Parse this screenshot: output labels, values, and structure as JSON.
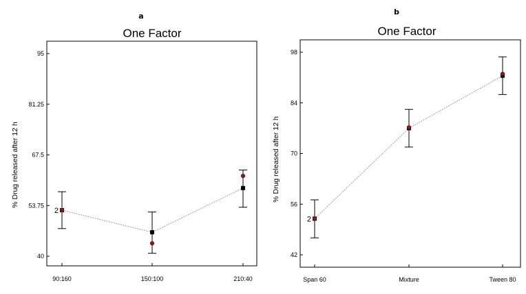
{
  "chart_data": [
    {
      "panel_label": "a",
      "type": "line",
      "title": "One Factor",
      "ylabel": "% Drug released after 12 h",
      "xlabel": "",
      "categories": [
        "90:160",
        "150:100",
        "210:40"
      ],
      "yticks": [
        "95",
        "81.25",
        "67.5",
        "53.75",
        "40"
      ],
      "ylim": [
        40,
        95
      ],
      "predicted": [
        52.5,
        46.5,
        58.5
      ],
      "ci_low": [
        47.5,
        40.8,
        53.3
      ],
      "ci_high": [
        57.5,
        52.0,
        63.4
      ],
      "observed": [
        52.5,
        43.5,
        61.8
      ],
      "point_count_label": "2",
      "grid": false,
      "colors": {
        "predicted": "#000000",
        "observed": "#8b1a1a",
        "line": "#9a9a9a"
      }
    },
    {
      "panel_label": "b",
      "type": "line",
      "title": "One Factor",
      "ylabel": "% Drug released after 12 h",
      "xlabel": "",
      "categories": [
        "Span 60",
        "Mixture",
        "Tween 80"
      ],
      "yticks": [
        "98",
        "84",
        "70",
        "56",
        "42"
      ],
      "ylim": [
        42,
        98
      ],
      "predicted": [
        52.0,
        77.0,
        91.5
      ],
      "ci_low": [
        46.7,
        71.8,
        86.3
      ],
      "ci_high": [
        57.2,
        82.2,
        96.7
      ],
      "observed": [
        52.0,
        77.2,
        92.0
      ],
      "point_count_label": "2",
      "grid": false,
      "colors": {
        "predicted": "#000000",
        "observed": "#8b1a1a",
        "line": "#9a9a9a"
      }
    }
  ]
}
